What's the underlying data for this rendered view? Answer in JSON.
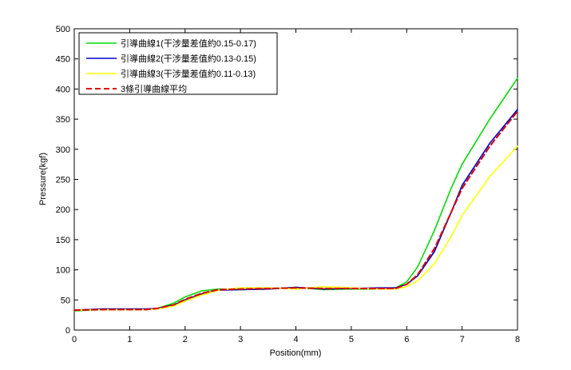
{
  "chart_data": {
    "type": "line",
    "title": "",
    "xlabel": "Position(mm)",
    "ylabel": "Pressure(kgf)",
    "xlim": [
      0,
      8
    ],
    "ylim": [
      0,
      500
    ],
    "x_ticks": [
      0,
      1,
      2,
      3,
      4,
      5,
      6,
      7,
      8
    ],
    "y_ticks": [
      0,
      50,
      100,
      150,
      200,
      250,
      300,
      350,
      400,
      450,
      500
    ],
    "grid": false,
    "legend_position": "top-left",
    "x": [
      0,
      0.5,
      1.0,
      1.3,
      1.5,
      1.8,
      2.0,
      2.3,
      2.6,
      3.0,
      3.5,
      4.0,
      4.5,
      5.0,
      5.5,
      5.8,
      6.0,
      6.2,
      6.5,
      6.8,
      7.0,
      7.5,
      8.0
    ],
    "series": [
      {
        "name": "引導曲線1(干涉量差值約0.15-0.17)",
        "color": "#00dd00",
        "dash": "solid",
        "values": [
          32,
          34,
          34,
          34,
          36,
          45,
          55,
          65,
          68,
          67,
          68,
          71,
          67,
          68,
          68,
          70,
          80,
          105,
          165,
          235,
          275,
          350,
          418
        ]
      },
      {
        "name": "引導曲線2(干涉量差值約0.13-0.15)",
        "color": "#0000cc",
        "dash": "solid",
        "values": [
          33,
          35,
          35,
          35,
          36,
          42,
          50,
          60,
          66,
          67,
          68,
          71,
          68,
          69,
          70,
          70,
          76,
          90,
          130,
          195,
          240,
          310,
          366
        ]
      },
      {
        "name": "引導曲線3(干涉量差值約0.11-0.13)",
        "color": "#ffff00",
        "dash": "solid",
        "values": [
          33,
          34,
          34,
          34,
          35,
          40,
          48,
          58,
          66,
          70,
          70,
          68,
          72,
          70,
          68,
          68,
          72,
          82,
          110,
          155,
          190,
          255,
          305
        ]
      },
      {
        "name": "3條引導曲線平均",
        "color": "#dd0000",
        "dash": "dashed",
        "values": [
          33,
          34,
          34,
          34,
          36,
          42,
          51,
          61,
          67,
          68,
          69,
          70,
          69,
          69,
          69,
          69,
          76,
          92,
          135,
          195,
          235,
          305,
          363
        ]
      }
    ]
  }
}
